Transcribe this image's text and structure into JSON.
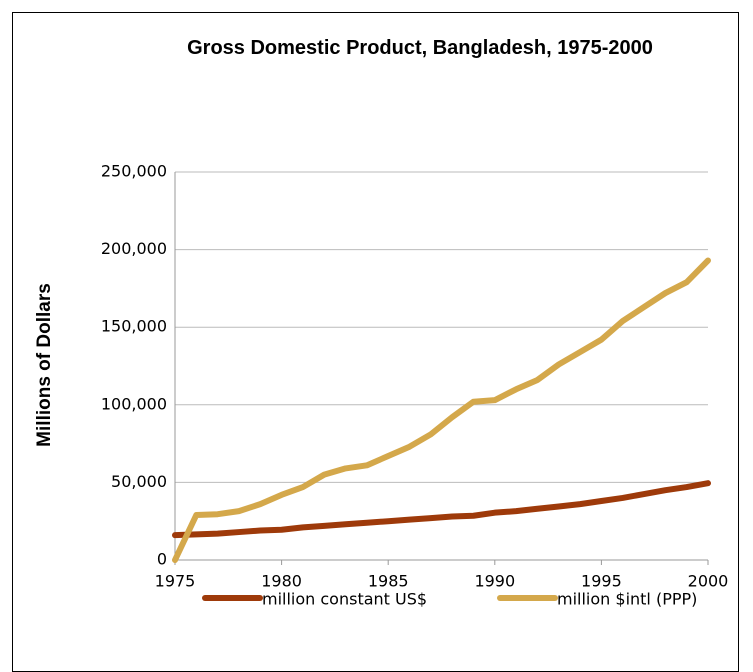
{
  "chart_data": {
    "type": "line",
    "title": "Gross Domestic Product, Bangladesh, 1975-2000",
    "y_label": "Millions of Dollars",
    "x": [
      1975,
      1976,
      1977,
      1978,
      1979,
      1980,
      1981,
      1982,
      1983,
      1984,
      1985,
      1986,
      1987,
      1988,
      1989,
      1990,
      1991,
      1992,
      1993,
      1994,
      1995,
      1996,
      1997,
      1998,
      1999,
      2000
    ],
    "series": [
      {
        "name": "million constant US$",
        "color": "#9e3a0a",
        "values": [
          16000,
          16500,
          17000,
          18000,
          19000,
          19500,
          21000,
          22000,
          23000,
          24000,
          25000,
          26000,
          27000,
          28000,
          28500,
          30500,
          31500,
          33000,
          34500,
          36000,
          38000,
          40000,
          42500,
          45000,
          47000,
          49500
        ]
      },
      {
        "name": "million $intl (PPP)",
        "color": "#d4a84b",
        "values": [
          0,
          29000,
          29500,
          31500,
          36000,
          42000,
          47000,
          55000,
          59000,
          61000,
          67000,
          73000,
          81000,
          92000,
          102000,
          103000,
          110000,
          116000,
          126000,
          134000,
          142000,
          154000,
          163000,
          172000,
          179000,
          193000
        ]
      }
    ],
    "xlim": [
      1975,
      2000
    ],
    "xticks": [
      1975,
      1980,
      1985,
      1990,
      1995,
      2000
    ],
    "ylim": [
      0,
      250000
    ],
    "yticks": [
      0,
      {
        "value": 50000,
        "label": "50,000"
      },
      {
        "value": 100000,
        "label": "100,000"
      },
      {
        "value": 150000,
        "label": "150,000"
      },
      {
        "value": 200000,
        "label": "200,000"
      },
      {
        "value": 250000,
        "label": "250,000"
      }
    ],
    "grid": true,
    "legend": "bottom"
  }
}
